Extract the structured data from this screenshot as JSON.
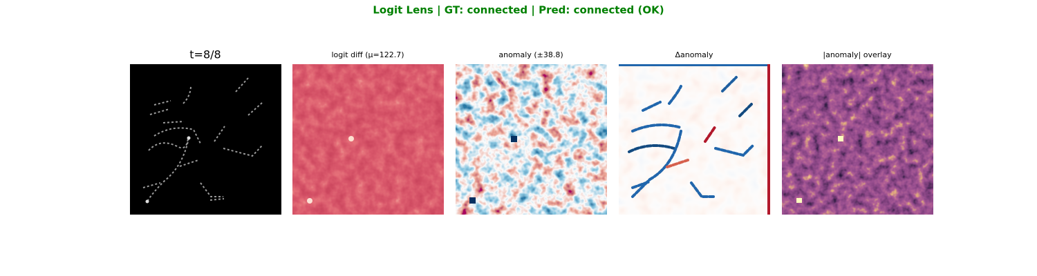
{
  "title": "Logit Lens | GT: connected | Pred: connected (OK)",
  "panels": [
    {
      "title": "t=8/8"
    },
    {
      "title": "logit diff (μ=122.7)"
    },
    {
      "title": "anomaly (±38.8)"
    },
    {
      "title": "Δanomaly"
    },
    {
      "title": "|anomaly| overlay"
    }
  ]
}
